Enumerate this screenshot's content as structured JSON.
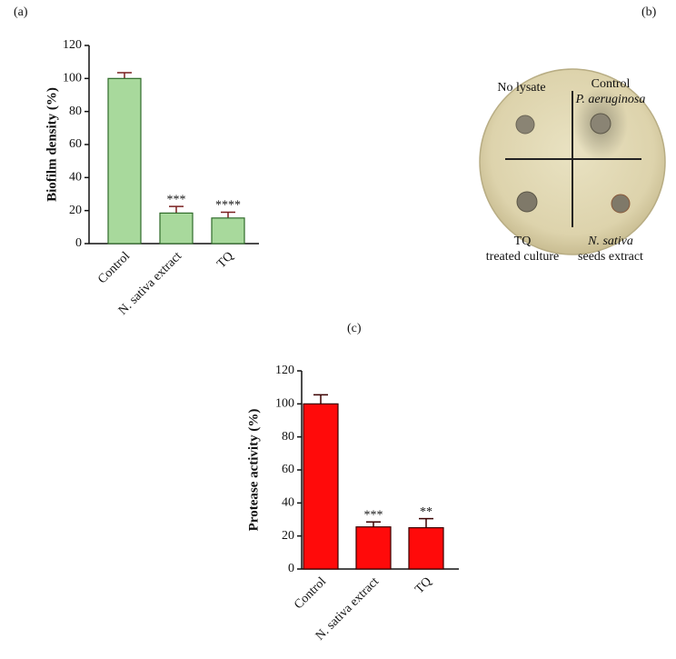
{
  "panel_labels": [
    "(a)",
    "(b)",
    "(c)"
  ],
  "chart_data": [
    {
      "type": "bar",
      "y_label": "Biofilm density (%)",
      "categories": [
        "Control",
        "N. sativa extract",
        "TQ"
      ],
      "values": [
        100,
        18.5,
        15.5
      ],
      "errors": [
        3.5,
        4,
        3.5
      ],
      "annotations": [
        null,
        "***",
        "****"
      ],
      "color": "#a8d99c",
      "edge_color": "#2f6b2a",
      "error_color": "#7a2020",
      "ylim": [
        0,
        120
      ],
      "yticks": [
        0,
        20,
        40,
        60,
        80,
        100,
        120
      ]
    },
    {
      "type": "bar",
      "y_label": "Protease activity (%)",
      "categories": [
        "Control",
        "N. sativa extract",
        "TQ"
      ],
      "values": [
        100,
        25.5,
        25
      ],
      "errors": [
        5.5,
        3,
        5.5
      ],
      "annotations": [
        null,
        "***",
        "**"
      ],
      "color": "#ff0a0a",
      "edge_color": "#3a0000",
      "error_color": "#3a0000",
      "ylim": [
        0,
        120
      ],
      "yticks": [
        0,
        20,
        40,
        60,
        80,
        100,
        120
      ]
    }
  ],
  "plate": {
    "labels": [
      "No lysate",
      "Control",
      "P. aeruginosa",
      "TQ",
      "treated culture",
      "N. sativa",
      "seeds extract"
    ]
  }
}
